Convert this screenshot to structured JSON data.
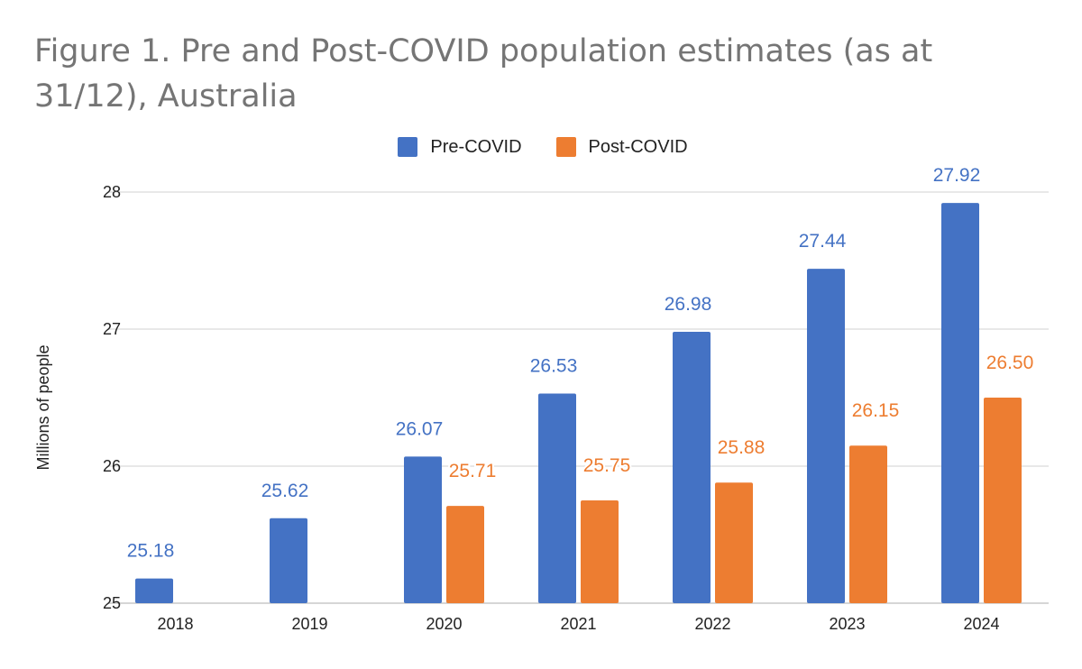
{
  "chart_data": {
    "type": "bar",
    "title": "Figure 1. Pre and Post-COVID population estimates (as at 31/12), Australia",
    "xlabel": "",
    "ylabel": "Millions of people",
    "categories": [
      "2018",
      "2019",
      "2020",
      "2021",
      "2022",
      "2023",
      "2024"
    ],
    "series": [
      {
        "name": "Pre-COVID",
        "color": "#4472C4",
        "values": [
          25.18,
          25.62,
          26.07,
          26.53,
          26.98,
          27.44,
          27.92
        ],
        "labels": [
          "25.18",
          "25.62",
          "26.07",
          "26.53",
          "26.98",
          "27.44",
          "27.92"
        ]
      },
      {
        "name": "Post-COVID",
        "color": "#ED7D31",
        "values": [
          null,
          null,
          25.71,
          25.75,
          25.88,
          26.15,
          26.5
        ],
        "labels": [
          null,
          null,
          "25.71",
          "25.75",
          "25.88",
          "26.15",
          "26.50"
        ]
      }
    ],
    "ylim": [
      25,
      28
    ],
    "yticks": [
      "25",
      "26",
      "27",
      "28"
    ],
    "grid": true,
    "legend_position": "top-center"
  }
}
